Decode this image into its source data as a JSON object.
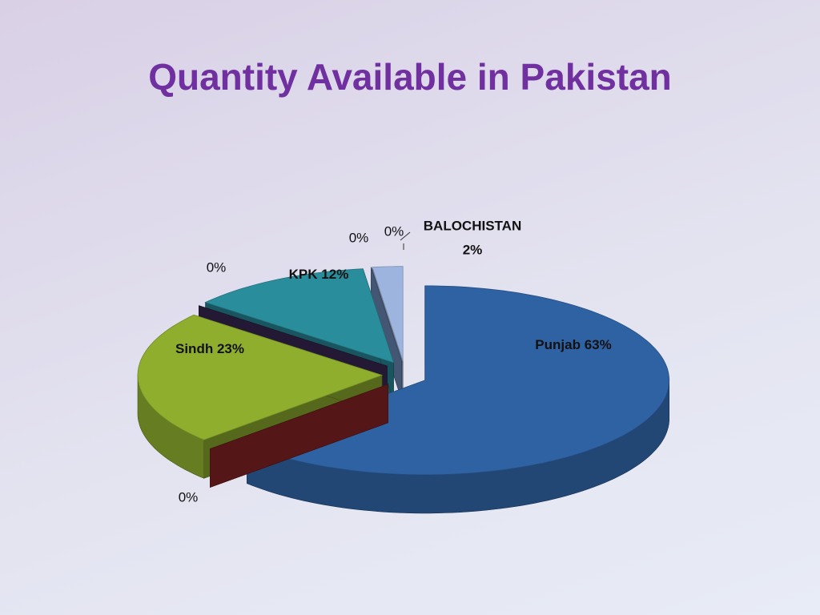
{
  "chart_data": {
    "type": "pie3d",
    "title": "Quantity Available in Pakistan",
    "categories": [
      "Punjab",
      null,
      "Sindh",
      null,
      "KPK",
      null,
      null,
      "BALOCHISTAN"
    ],
    "values": [
      63,
      0,
      23,
      0,
      12,
      0,
      0,
      2
    ],
    "value_labels": [
      "63%",
      "0%",
      "23%",
      "0%",
      "12%",
      "0%",
      "0%",
      "2%"
    ],
    "colors": [
      "#2f62a3",
      "#8c2424",
      "#8fae2e",
      "#3a2a56",
      "#2a8d9c",
      "#c8711e",
      "#6f8fc0",
      "#9db5de"
    ]
  }
}
